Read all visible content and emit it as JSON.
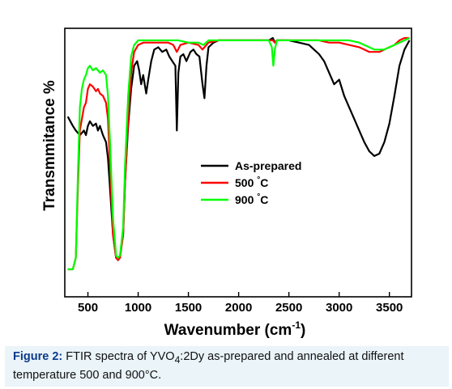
{
  "chart_data": {
    "type": "line",
    "xlabel": "Wavenumber (cm",
    "xlabel_sup": "-1",
    "xlabel_close": ")",
    "ylabel": "Transmmitance %",
    "x_ticks": [
      500,
      1000,
      1500,
      2000,
      2500,
      3000,
      3500
    ],
    "xlim": [
      270,
      3720
    ],
    "ylim": [
      0,
      100
    ],
    "y_ticks_labeled": false,
    "grid": false,
    "legend_position": "center-right",
    "series": [
      {
        "name": "As-prepared",
        "color": "#000000",
        "x": [
          300,
          350,
          380,
          400,
          420,
          440,
          460,
          480,
          500,
          520,
          550,
          580,
          600,
          620,
          650,
          680,
          700,
          720,
          750,
          780,
          800,
          820,
          850,
          870,
          900,
          930,
          960,
          990,
          1010,
          1030,
          1050,
          1080,
          1100,
          1130,
          1160,
          1200,
          1240,
          1280,
          1310,
          1340,
          1370,
          1385,
          1400,
          1420,
          1450,
          1480,
          1520,
          1550,
          1580,
          1610,
          1640,
          1660,
          1680,
          1700,
          1750,
          1800,
          1900,
          2000,
          2100,
          2200,
          2300,
          2340,
          2360,
          2380,
          2420,
          2500,
          2600,
          2700,
          2750,
          2800,
          2850,
          2900,
          2950,
          3000,
          3050,
          3100,
          3150,
          3200,
          3250,
          3300,
          3350,
          3400,
          3450,
          3500,
          3550,
          3600,
          3650,
          3700
        ],
        "values": [
          66,
          62,
          60,
          59,
          58,
          59,
          60,
          58,
          62,
          64,
          62,
          63,
          60,
          62,
          58,
          55,
          48,
          35,
          15,
          5,
          4,
          6,
          15,
          38,
          62,
          78,
          88,
          90,
          86,
          80,
          84,
          76,
          82,
          90,
          95,
          96,
          94,
          95,
          92,
          90,
          88,
          60,
          85,
          92,
          93,
          90,
          94,
          95,
          93,
          92,
          80,
          74,
          88,
          96,
          98,
          99,
          99,
          99,
          99,
          99,
          99,
          100,
          98,
          99,
          99,
          99,
          98,
          97,
          95,
          93,
          90,
          85,
          80,
          82,
          75,
          70,
          65,
          60,
          55,
          51,
          49,
          50,
          55,
          63,
          75,
          88,
          95,
          99
        ]
      },
      {
        "name": "500 °C",
        "color": "#ff0000",
        "x": [
          300,
          350,
          380,
          400,
          420,
          440,
          460,
          480,
          500,
          520,
          550,
          580,
          600,
          620,
          650,
          680,
          700,
          720,
          750,
          780,
          800,
          820,
          850,
          870,
          900,
          930,
          960,
          1000,
          1050,
          1100,
          1200,
          1300,
          1350,
          1385,
          1420,
          1500,
          1600,
          1640,
          1660,
          1700,
          1800,
          2000,
          2200,
          2300,
          2340,
          2360,
          2380,
          2420,
          2600,
          2800,
          2900,
          3000,
          3100,
          3200,
          3250,
          3300,
          3350,
          3400,
          3450,
          3500,
          3550,
          3600,
          3650,
          3700
        ],
        "values": [
          0,
          0,
          5,
          35,
          60,
          65,
          70,
          72,
          78,
          80,
          79,
          77,
          78,
          76,
          75,
          72,
          65,
          45,
          15,
          5,
          4,
          5,
          15,
          38,
          65,
          85,
          94,
          97,
          98,
          98,
          98,
          98,
          97,
          94,
          97,
          98,
          97,
          95,
          96,
          98,
          99,
          99,
          99,
          99,
          99,
          98,
          99,
          99,
          99,
          99,
          98,
          98,
          97,
          96,
          95,
          94,
          94,
          94,
          95,
          96,
          97,
          99,
          100,
          100
        ]
      },
      {
        "name": "900 °C",
        "color": "#00ff00",
        "x": [
          300,
          350,
          380,
          400,
          420,
          440,
          460,
          480,
          500,
          520,
          550,
          580,
          600,
          620,
          650,
          680,
          700,
          720,
          750,
          780,
          800,
          820,
          850,
          870,
          900,
          930,
          960,
          1000,
          1050,
          1100,
          1200,
          1300,
          1400,
          1500,
          1600,
          1650,
          1700,
          1800,
          2000,
          2200,
          2300,
          2330,
          2345,
          2360,
          2380,
          2420,
          2600,
          2800,
          2900,
          3000,
          3100,
          3200,
          3250,
          3300,
          3350,
          3400,
          3450,
          3500,
          3550,
          3600,
          3650,
          3700
        ],
        "values": [
          0,
          0,
          5,
          40,
          70,
          78,
          82,
          84,
          87,
          88,
          86,
          87,
          86,
          85,
          86,
          84,
          75,
          55,
          22,
          6,
          5,
          6,
          18,
          45,
          75,
          92,
          97,
          99,
          99,
          99,
          99,
          99,
          99,
          98,
          98,
          97,
          99,
          99,
          99,
          99,
          99,
          96,
          88,
          95,
          99,
          99,
          99,
          99,
          99,
          99,
          99,
          98,
          97,
          96,
          95,
          95,
          95,
          96,
          97,
          98,
          99,
          100
        ]
      }
    ]
  },
  "caption": {
    "label": "Figure 2:",
    "text_before_sub": " FTIR spectra of YVO",
    "sub": "4",
    "text_after_sub": ":2Dy as-prepared and annealed at different temperature 500 and 900°C."
  }
}
